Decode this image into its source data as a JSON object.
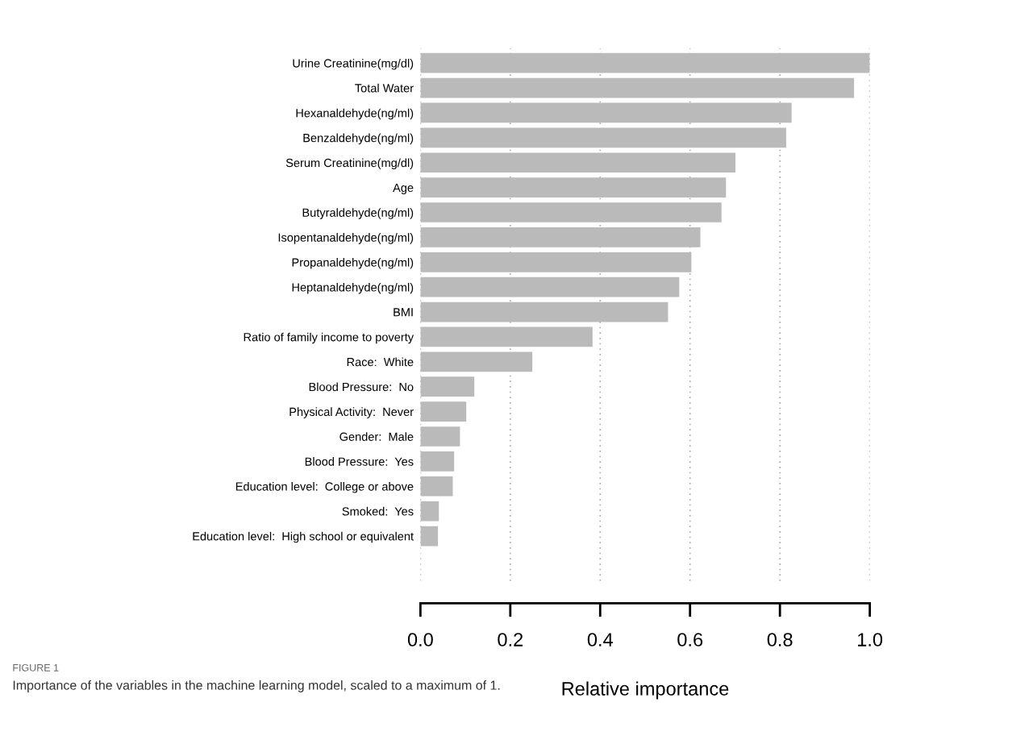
{
  "chart_data": {
    "type": "bar",
    "orientation": "horizontal",
    "categories": [
      "Urine Creatinine(mg/dl)",
      "Total Water",
      "Hexanaldehyde(ng/ml)",
      "Benzaldehyde(ng/ml)",
      "Serum Creatinine(mg/dl)",
      "Age",
      "Butyraldehyde(ng/ml)",
      "Isopentanaldehyde(ng/ml)",
      "Propanaldehyde(ng/ml)",
      "Heptanaldehyde(ng/ml)",
      "BMI",
      "Ratio of family income to poverty",
      "Race:  White",
      "Blood Pressure:  No",
      "Physical Activity:  Never",
      "Gender:  Male",
      "Blood Pressure:  Yes",
      "Education level:  College or above",
      "Smoked:  Yes",
      "Education level:  High school or equivalent"
    ],
    "values": [
      1.0,
      0.965,
      0.826,
      0.814,
      0.701,
      0.68,
      0.67,
      0.623,
      0.603,
      0.576,
      0.551,
      0.383,
      0.249,
      0.12,
      0.102,
      0.088,
      0.075,
      0.072,
      0.041,
      0.039
    ],
    "color": "#bababa",
    "xlabel": "Relative importance",
    "xlim": [
      0,
      1
    ],
    "xticks": [
      {
        "value": 0,
        "label": "0.0"
      },
      {
        "value": 0.2,
        "label": "0.2"
      },
      {
        "value": 0.4,
        "label": "0.4"
      },
      {
        "value": 0.6,
        "label": "0.6"
      },
      {
        "value": 0.8,
        "label": "0.8"
      },
      {
        "value": 1,
        "label": "1.0"
      }
    ],
    "grid": "x",
    "annotations": [
      "FIGURE 1",
      "Importance of the variables in the machine learning model, scaled to a maximum of 1."
    ]
  }
}
